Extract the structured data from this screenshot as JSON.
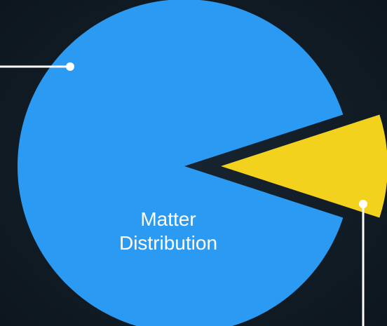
{
  "chart_data": {
    "type": "pie",
    "title": "Matter Distribution",
    "categories": [
      null,
      null
    ],
    "values": [
      90,
      10
    ],
    "colors": [
      "#2b9af3",
      "#f2d21c"
    ],
    "explode": [
      false,
      true
    ]
  }
}
